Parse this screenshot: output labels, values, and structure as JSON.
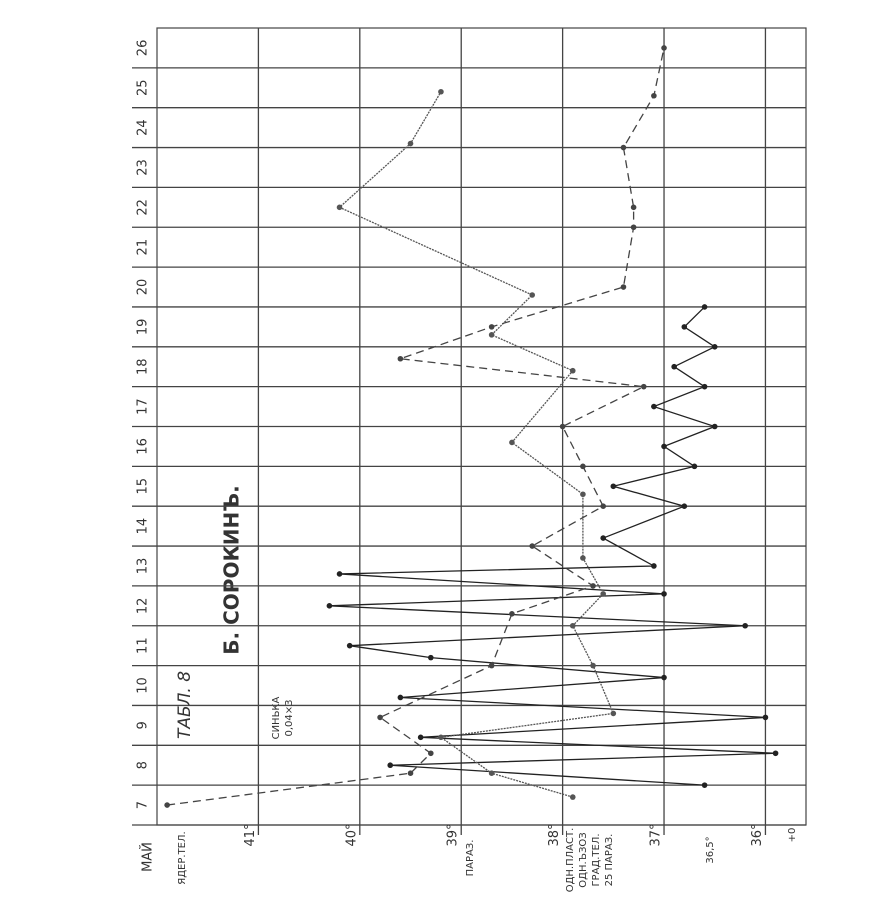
{
  "chart_data": {
    "type": "line",
    "title": "Б. СОРОКИНЪ.",
    "subtitle": "ТАБЛ. 8",
    "x_label": "МАЙ",
    "annotations": [
      "ЯДЕР.ТЕЛ.",
      "ПАРАЗ.",
      "ОДН.ПЛАСТ.",
      "ОДН.ЪЗОЗ",
      "ГРАД.ТЕЛ.",
      "25 ПАРАЗ.",
      "СИНЬКА",
      "0,04×3",
      "36,5°",
      "+0"
    ],
    "xlim": [
      6.5,
      26.5
    ],
    "xticks": [
      7,
      8,
      9,
      10,
      11,
      12,
      13,
      14,
      15,
      16,
      17,
      18,
      19,
      20,
      21,
      22,
      23,
      24,
      25,
      26
    ],
    "ylim": [
      35.6,
      42
    ],
    "yticks": [
      {
        "value": 41,
        "label": "41°"
      },
      {
        "value": 40,
        "label": "40°"
      },
      {
        "value": 39,
        "label": "39°"
      },
      {
        "value": 38,
        "label": "38°"
      },
      {
        "value": 37,
        "label": "37°"
      },
      {
        "value": 36,
        "label": "36°"
      }
    ],
    "grid": true,
    "series": [
      {
        "color": "#222",
        "style": "solid",
        "x": [
          7.5,
          8.0,
          8.3,
          8.7,
          9.2,
          9.7,
          10.2,
          10.7,
          11.0,
          11.5,
          12.0,
          12.3,
          12.8,
          13.0,
          13.7,
          14.5,
          15.0,
          15.5,
          16.0,
          16.5,
          17.0,
          17.5,
          18.0,
          18.5,
          19.0,
          19.5
        ],
        "values": [
          36.6,
          39.7,
          35.9,
          39.4,
          36.0,
          39.6,
          37.0,
          39.3,
          40.1,
          36.2,
          40.3,
          37.0,
          40.2,
          37.1,
          37.6,
          36.8,
          37.5,
          36.7,
          37.0,
          36.5,
          37.1,
          36.6,
          36.9,
          36.5,
          36.8,
          36.6
        ]
      },
      {
        "color": "#555",
        "style": "wavy",
        "x": [
          7.2,
          7.8,
          8.7,
          9.3,
          10.5,
          11.5,
          12.3,
          13.2,
          14.8,
          16.1,
          17.9,
          18.8,
          19.8,
          22.0,
          23.6,
          24.9
        ],
        "values": [
          37.9,
          38.7,
          39.2,
          37.5,
          37.7,
          37.9,
          37.6,
          37.8,
          37.8,
          38.5,
          37.9,
          38.7,
          38.3,
          40.2,
          39.5,
          39.2
        ]
      },
      {
        "color": "#444",
        "style": "dashed",
        "x": [
          7.0,
          7.8,
          8.3,
          9.2,
          10.5,
          11.8,
          12.5,
          13.5,
          14.5,
          15.5,
          16.5,
          17.5,
          18.2,
          19.0,
          20.0,
          21.5,
          22.0,
          23.5,
          24.8,
          26.0
        ],
        "values": [
          41.9,
          39.5,
          39.3,
          39.8,
          38.7,
          38.5,
          37.7,
          38.3,
          37.6,
          37.8,
          38.0,
          37.2,
          39.6,
          38.7,
          37.4,
          37.3,
          37.3,
          37.4,
          37.1,
          37.0
        ]
      }
    ]
  }
}
